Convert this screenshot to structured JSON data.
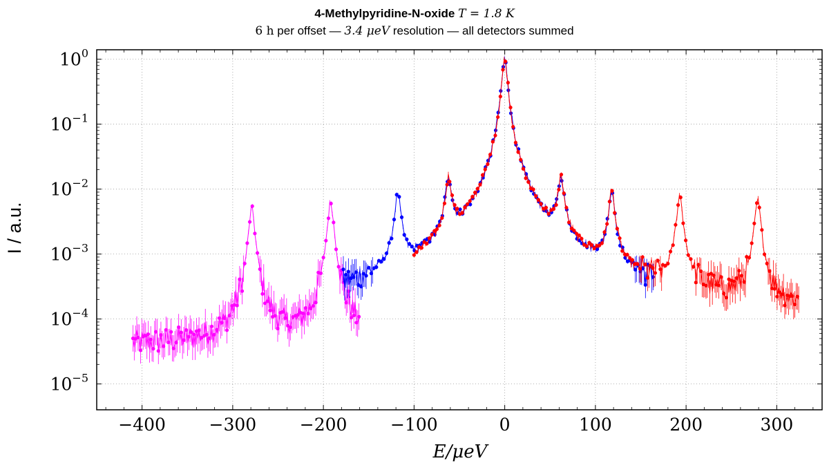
{
  "chart_data": {
    "type": "scatter",
    "title": "4-Methylpyridine-N-oxide",
    "title_math": "T = 1.8 K",
    "subtitle_prefix": "6 h",
    "subtitle_mid": " per offset — ",
    "subtitle_math": "3.4 μeV",
    "subtitle_suffix": " resolution — all detectors summed",
    "xlabel": "E/μeV",
    "ylabel": "I / a.u.",
    "xlim": [
      -450,
      350
    ],
    "ylim": [
      4e-06,
      1.4
    ],
    "yscale": "log",
    "grid": true,
    "x_ticks": [
      -400,
      -300,
      -200,
      -100,
      0,
      100,
      200,
      300
    ],
    "x_tick_labels": [
      "−400",
      "−300",
      "−200",
      "−100",
      "0",
      "100",
      "200",
      "300"
    ],
    "y_ticks": [
      1e-05,
      0.0001,
      0.001,
      0.01,
      0.1,
      1
    ],
    "y_tick_exponents": [
      "−5",
      "−4",
      "−3",
      "−2",
      "−1",
      "0"
    ],
    "y_tick_base": "10",
    "colors": {
      "magenta": "#ff00ff",
      "blue": "#0000ff",
      "red": "#ff0000"
    },
    "series": [
      {
        "color": "#ff00ff",
        "range": [
          -410,
          -160
        ],
        "baseline": 4e-05,
        "peaks": [
          {
            "x": -279,
            "h": 0.005
          },
          {
            "x": -192,
            "h": 0.0063
          }
        ]
      },
      {
        "color": "#0000ff",
        "range": [
          -178,
          165
        ],
        "baseline": 7e-05,
        "peaks": [
          {
            "x": -118,
            "h": 0.0078
          },
          {
            "x": -62,
            "h": 0.0135
          },
          {
            "x": 0,
            "h": 0.98
          },
          {
            "x": 62,
            "h": 0.0135
          },
          {
            "x": 118,
            "h": 0.0088
          }
        ]
      },
      {
        "color": "#ff0000",
        "range": [
          -100,
          325
        ],
        "baseline": 8e-05,
        "peaks": [
          {
            "x": -62,
            "h": 0.0135
          },
          {
            "x": 0,
            "h": 0.98
          },
          {
            "x": 62,
            "h": 0.0135
          },
          {
            "x": 118,
            "h": 0.0088
          },
          {
            "x": 193,
            "h": 0.0077
          },
          {
            "x": 279,
            "h": 0.0065
          }
        ]
      }
    ]
  }
}
